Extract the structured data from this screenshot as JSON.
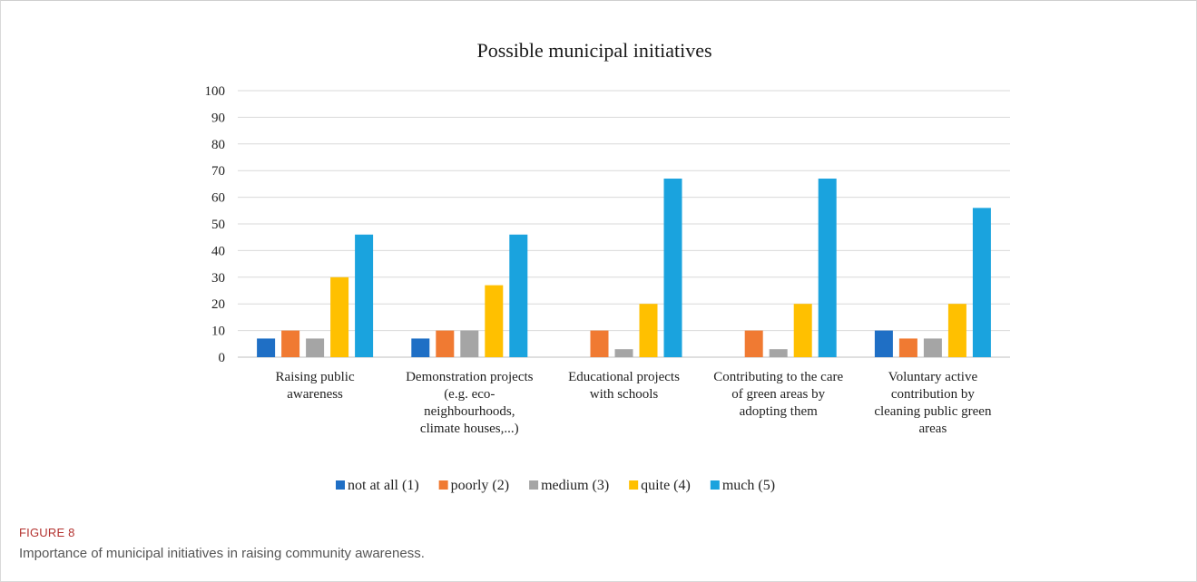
{
  "figure": {
    "label": "FIGURE 8",
    "caption": "Importance of municipal initiatives in raising community awareness."
  },
  "chart_data": {
    "type": "bar",
    "title": "Possible municipal initiatives",
    "xlabel": "",
    "ylabel": "",
    "ylim": [
      0,
      100
    ],
    "yticks": [
      0,
      10,
      20,
      30,
      40,
      50,
      60,
      70,
      80,
      90,
      100
    ],
    "grid": true,
    "legend_position": "bottom",
    "categories": [
      [
        "Raising public",
        "awareness"
      ],
      [
        "Demonstration projects",
        "(e.g. eco-",
        "neighbourhoods,",
        "climate houses,...)"
      ],
      [
        "Educational projects",
        "with schools"
      ],
      [
        "Contributing to the care",
        "of green areas by",
        "adopting them"
      ],
      [
        "Voluntary active",
        "contribution by",
        "cleaning public green",
        "areas"
      ]
    ],
    "series": [
      {
        "name": "not at all (1)",
        "color": "#1f6fc5",
        "values": [
          7,
          7,
          0,
          0,
          10
        ]
      },
      {
        "name": "poorly (2)",
        "color": "#f07a32",
        "values": [
          10,
          10,
          10,
          10,
          7
        ]
      },
      {
        "name": "medium (3)",
        "color": "#a5a5a5",
        "values": [
          7,
          10,
          3,
          3,
          7
        ]
      },
      {
        "name": "quite (4)",
        "color": "#ffc000",
        "values": [
          30,
          27,
          20,
          20,
          20
        ]
      },
      {
        "name": "much (5)",
        "color": "#1aa3de",
        "values": [
          46,
          46,
          67,
          67,
          56
        ]
      }
    ]
  }
}
